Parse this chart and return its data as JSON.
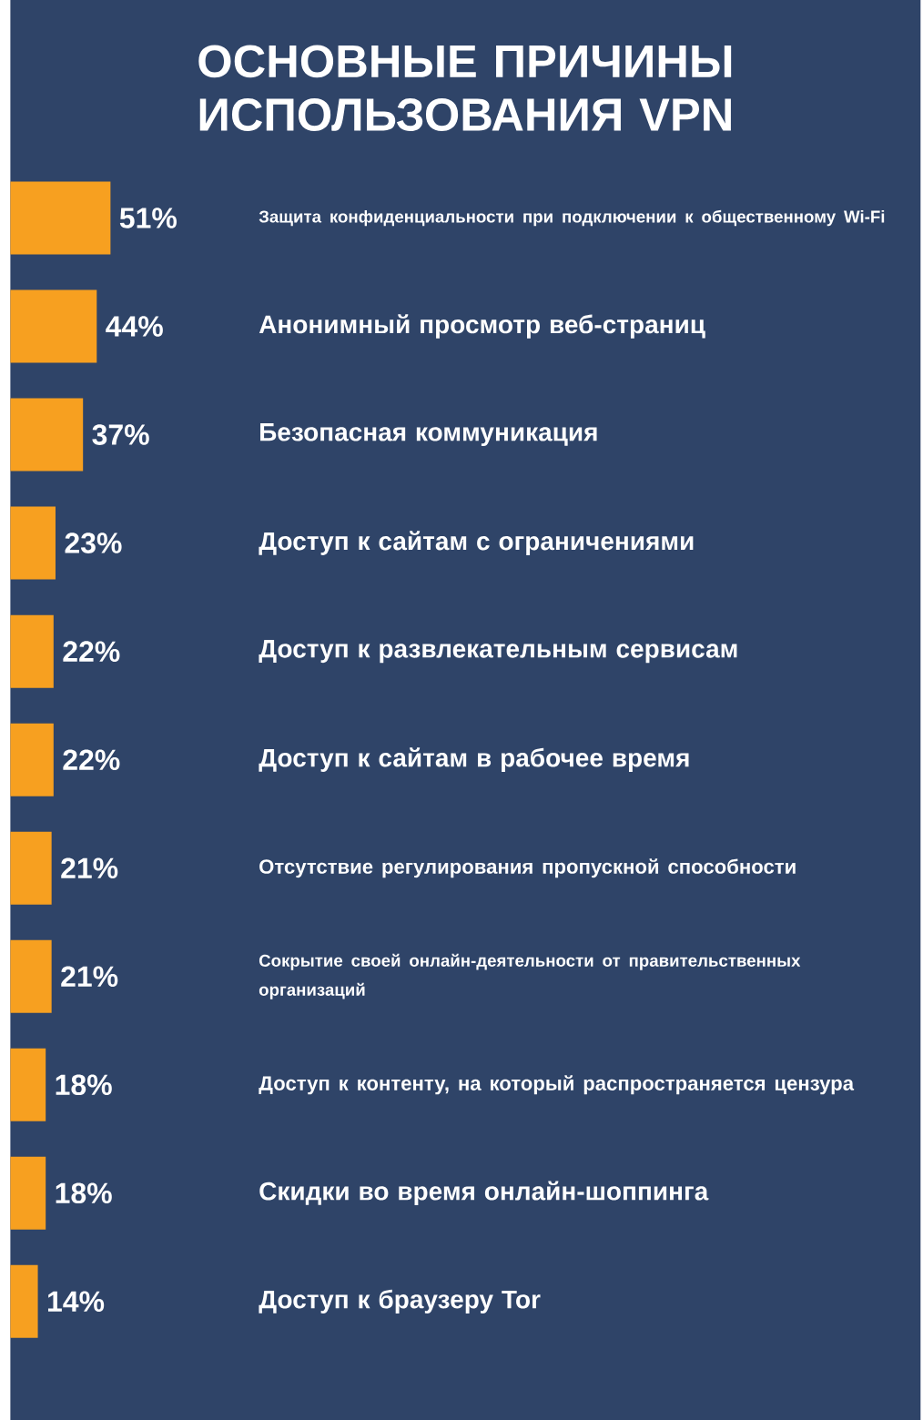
{
  "chart_data": {
    "type": "bar",
    "orientation": "horizontal",
    "title": "ОСНОВНЫЕ ПРИЧИНЫ ИСПОЛЬЗОВАНИЯ VPN",
    "categories": [
      "Защита конфиденциальности при подключении к общественному Wi-Fi",
      "Анонимный просмотр веб-страниц",
      "Безопасная коммуникация",
      "Доступ к сайтам с ограничениями",
      "Доступ к развлекательным сервисам",
      "Доступ к сайтам в рабочее время",
      "Отсутствие регулирования пропускной способности",
      "Сокрытие своей онлайн-деятельности от правительственных организаций",
      "Доступ к контенту, на который распространяется цензура",
      "Скидки во время онлайн-шоппинга",
      "Доступ к браузеру Tor"
    ],
    "values": [
      51,
      44,
      37,
      23,
      22,
      22,
      21,
      21,
      18,
      18,
      14
    ],
    "value_labels": [
      "51%",
      "44%",
      "37%",
      "23%",
      "22%",
      "22%",
      "21%",
      "21%",
      "18%",
      "18%",
      "14%"
    ],
    "color": "#f7a020"
  }
}
